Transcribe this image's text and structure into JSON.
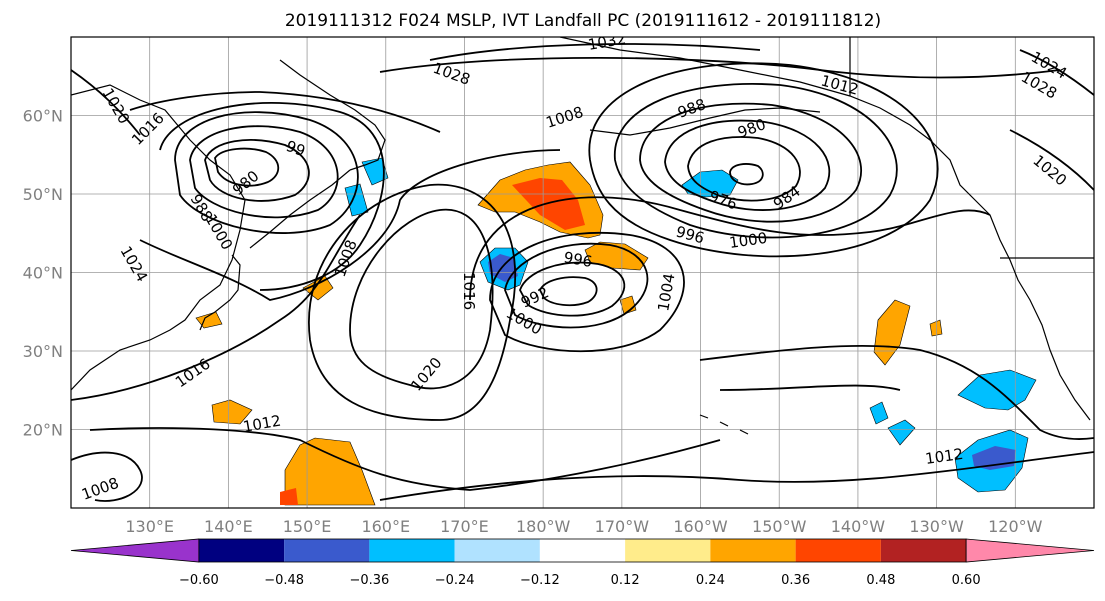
{
  "title": "2019111312 F024 MSLP, IVT Landfall PC (2019111612 - 2019111812)",
  "map": {
    "lon_range": [
      120,
      250
    ],
    "lat_range": [
      10,
      70
    ],
    "lon_ticks": [
      "130°E",
      "140°E",
      "150°E",
      "160°E",
      "170°E",
      "180°W",
      "170°W",
      "160°W",
      "150°W",
      "140°W",
      "130°W",
      "120°W"
    ],
    "lat_ticks": [
      "20°N",
      "30°N",
      "40°N",
      "50°N",
      "60°N"
    ],
    "grid": true
  },
  "colorbar": {
    "tick_labels": [
      "−0.60",
      "−0.48",
      "−0.36",
      "−0.24",
      "−0.12",
      "0.12",
      "0.24",
      "0.36",
      "0.48",
      "0.60"
    ],
    "colors": [
      "#9933cc",
      "#000080",
      "#3a5acd",
      "#00bfff",
      "#b0e2ff",
      "#ffffff",
      "#ffec8b",
      "#ffa500",
      "#ff4500",
      "#b22222",
      "#ff88aa"
    ]
  },
  "contour_labels": [
    "1032",
    "1028",
    "1024",
    "1028",
    "1020",
    "1016",
    "1008",
    "988",
    "980",
    "1012",
    "99",
    "980",
    "988",
    "1000",
    "1008",
    "976",
    "984",
    "996",
    "1000",
    "996",
    "992",
    "1000",
    "1004",
    "1016",
    "1020",
    "1012",
    "1016",
    "1012",
    "1008",
    "1020",
    "1024"
  ]
}
